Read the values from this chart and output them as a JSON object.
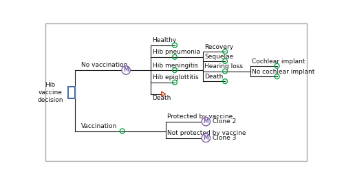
{
  "bg_color": "#ffffff",
  "border_color": "#aaaaaa",
  "line_color": "#1a1a1a",
  "green_circle_color": "#00aa44",
  "markov_circle_color": "#7b5ea7",
  "decision_box_color": "#4a6fa5",
  "triangle_color": "#cc3300",
  "text_color": "#111111",
  "labels": {
    "hib_vaccine": "Hib\nvaccine\ndecision",
    "no_vaccination": "No vaccination",
    "vaccination": "Vaccination",
    "healthy": "Healthy",
    "hib_pneumonia": "Hib pneumonia",
    "hib_meningitis": "Hib meningitis",
    "hib_epiglottitis": "Hib epiglottitis",
    "death": "Death",
    "recovery": "Recovery",
    "sequelae": "Sequelae",
    "hearing_loss": "Hearing loss",
    "death2": "Death",
    "cochlear": "Cochlear implant",
    "no_cochlear": "No cochlear implant",
    "protected": "Protected by vaccine",
    "not_protected": "Not protected by vaccine",
    "clone2": "Clone 2",
    "clone3": "Clone 3",
    "markov_m": "M"
  }
}
